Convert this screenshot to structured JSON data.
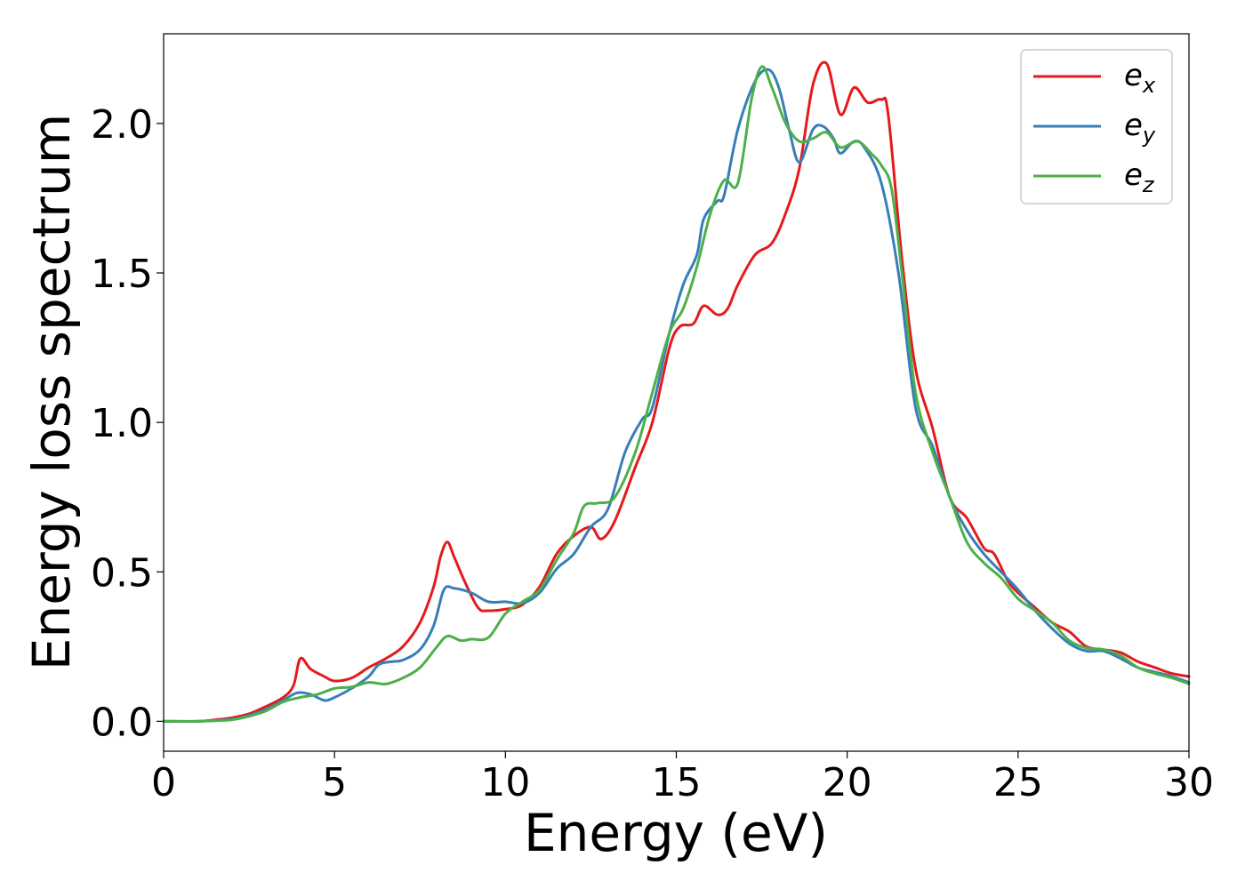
{
  "chart_data": {
    "type": "line",
    "xlabel": "Energy (eV)",
    "ylabel": "Energy loss spectrum",
    "xlim": [
      0,
      30
    ],
    "ylim": [
      -0.1,
      2.3
    ],
    "xticks": [
      0,
      5,
      10,
      15,
      20,
      25,
      30
    ],
    "xtick_labels": [
      "0",
      "5",
      "10",
      "15",
      "20",
      "25",
      "30"
    ],
    "yticks": [
      0.0,
      0.5,
      1.0,
      1.5,
      2.0
    ],
    "ytick_labels": [
      "0.0",
      "0.5",
      "1.0",
      "1.5",
      "2.0"
    ],
    "grid": false,
    "legend_position": "top-right",
    "series": [
      {
        "name": "e",
        "subscript": "x",
        "color": "#e41a1c",
        "points": [
          [
            0,
            0
          ],
          [
            1,
            0
          ],
          [
            1.5,
            0.005
          ],
          [
            2,
            0.012
          ],
          [
            2.5,
            0.025
          ],
          [
            3,
            0.05
          ],
          [
            3.5,
            0.08
          ],
          [
            3.8,
            0.12
          ],
          [
            4,
            0.21
          ],
          [
            4.3,
            0.175
          ],
          [
            4.7,
            0.15
          ],
          [
            5,
            0.135
          ],
          [
            5.5,
            0.145
          ],
          [
            6,
            0.18
          ],
          [
            6.5,
            0.21
          ],
          [
            7,
            0.25
          ],
          [
            7.5,
            0.33
          ],
          [
            7.9,
            0.45
          ],
          [
            8.1,
            0.55
          ],
          [
            8.3,
            0.6
          ],
          [
            8.5,
            0.55
          ],
          [
            8.8,
            0.47
          ],
          [
            9.2,
            0.38
          ],
          [
            9.5,
            0.37
          ],
          [
            10,
            0.375
          ],
          [
            10.5,
            0.39
          ],
          [
            11,
            0.45
          ],
          [
            11.5,
            0.56
          ],
          [
            12,
            0.62
          ],
          [
            12.5,
            0.65
          ],
          [
            12.8,
            0.61
          ],
          [
            13.2,
            0.67
          ],
          [
            13.8,
            0.85
          ],
          [
            14.3,
            1.0
          ],
          [
            14.8,
            1.25
          ],
          [
            15.1,
            1.32
          ],
          [
            15.5,
            1.33
          ],
          [
            15.8,
            1.39
          ],
          [
            16.2,
            1.36
          ],
          [
            16.5,
            1.38
          ],
          [
            16.8,
            1.46
          ],
          [
            17.3,
            1.56
          ],
          [
            17.8,
            1.6
          ],
          [
            18.2,
            1.7
          ],
          [
            18.6,
            1.85
          ],
          [
            19,
            2.13
          ],
          [
            19.4,
            2.2
          ],
          [
            19.8,
            2.03
          ],
          [
            20.2,
            2.12
          ],
          [
            20.6,
            2.07
          ],
          [
            21,
            2.08
          ],
          [
            21.2,
            2.03
          ],
          [
            21.6,
            1.55
          ],
          [
            22,
            1.18
          ],
          [
            22.5,
            0.98
          ],
          [
            23,
            0.75
          ],
          [
            23.5,
            0.68
          ],
          [
            24,
            0.58
          ],
          [
            24.3,
            0.56
          ],
          [
            24.7,
            0.47
          ],
          [
            25,
            0.43
          ],
          [
            25.5,
            0.38
          ],
          [
            26,
            0.33
          ],
          [
            26.5,
            0.3
          ],
          [
            27,
            0.25
          ],
          [
            27.5,
            0.24
          ],
          [
            28,
            0.23
          ],
          [
            28.5,
            0.2
          ],
          [
            29,
            0.18
          ],
          [
            29.5,
            0.16
          ],
          [
            30,
            0.15
          ]
        ]
      },
      {
        "name": "e",
        "subscript": "y",
        "color": "#377eb8",
        "points": [
          [
            0,
            0
          ],
          [
            1,
            0
          ],
          [
            1.5,
            0.003
          ],
          [
            2,
            0.007
          ],
          [
            2.5,
            0.02
          ],
          [
            3,
            0.04
          ],
          [
            3.5,
            0.07
          ],
          [
            3.9,
            0.095
          ],
          [
            4.3,
            0.09
          ],
          [
            4.7,
            0.07
          ],
          [
            5,
            0.08
          ],
          [
            5.5,
            0.11
          ],
          [
            6,
            0.15
          ],
          [
            6.3,
            0.19
          ],
          [
            6.7,
            0.2
          ],
          [
            7,
            0.205
          ],
          [
            7.5,
            0.24
          ],
          [
            7.9,
            0.32
          ],
          [
            8.2,
            0.44
          ],
          [
            8.5,
            0.445
          ],
          [
            9,
            0.43
          ],
          [
            9.5,
            0.4
          ],
          [
            10,
            0.4
          ],
          [
            10.5,
            0.395
          ],
          [
            11,
            0.43
          ],
          [
            11.5,
            0.51
          ],
          [
            12,
            0.56
          ],
          [
            12.5,
            0.65
          ],
          [
            13,
            0.71
          ],
          [
            13.5,
            0.9
          ],
          [
            14,
            1.01
          ],
          [
            14.3,
            1.05
          ],
          [
            14.8,
            1.3
          ],
          [
            15.2,
            1.46
          ],
          [
            15.6,
            1.56
          ],
          [
            15.8,
            1.68
          ],
          [
            16.2,
            1.74
          ],
          [
            16.4,
            1.76
          ],
          [
            16.8,
            1.98
          ],
          [
            17.3,
            2.14
          ],
          [
            17.7,
            2.18
          ],
          [
            18,
            2.12
          ],
          [
            18.3,
            1.98
          ],
          [
            18.6,
            1.87
          ],
          [
            19,
            1.98
          ],
          [
            19.3,
            1.99
          ],
          [
            19.6,
            1.95
          ],
          [
            19.8,
            1.9
          ],
          [
            20.2,
            1.94
          ],
          [
            20.5,
            1.92
          ],
          [
            21,
            1.8
          ],
          [
            21.5,
            1.5
          ],
          [
            22,
            1.05
          ],
          [
            22.5,
            0.92
          ],
          [
            23,
            0.75
          ],
          [
            23.5,
            0.64
          ],
          [
            24,
            0.56
          ],
          [
            24.5,
            0.5
          ],
          [
            25,
            0.44
          ],
          [
            25.5,
            0.37
          ],
          [
            26,
            0.31
          ],
          [
            26.5,
            0.26
          ],
          [
            27,
            0.235
          ],
          [
            27.5,
            0.235
          ],
          [
            28,
            0.21
          ],
          [
            28.5,
            0.18
          ],
          [
            29,
            0.165
          ],
          [
            29.5,
            0.15
          ],
          [
            30,
            0.13
          ]
        ]
      },
      {
        "name": "e",
        "subscript": "z",
        "color": "#4daf4a",
        "points": [
          [
            0,
            0
          ],
          [
            1,
            0
          ],
          [
            1.5,
            0.002
          ],
          [
            2,
            0.005
          ],
          [
            2.5,
            0.017
          ],
          [
            3,
            0.035
          ],
          [
            3.5,
            0.065
          ],
          [
            4,
            0.08
          ],
          [
            4.5,
            0.09
          ],
          [
            5,
            0.11
          ],
          [
            5.5,
            0.115
          ],
          [
            6,
            0.13
          ],
          [
            6.5,
            0.125
          ],
          [
            7,
            0.145
          ],
          [
            7.5,
            0.18
          ],
          [
            8,
            0.25
          ],
          [
            8.3,
            0.285
          ],
          [
            8.7,
            0.27
          ],
          [
            9,
            0.275
          ],
          [
            9.5,
            0.28
          ],
          [
            10,
            0.36
          ],
          [
            10.5,
            0.4
          ],
          [
            11,
            0.44
          ],
          [
            11.5,
            0.54
          ],
          [
            12,
            0.63
          ],
          [
            12.3,
            0.72
          ],
          [
            12.7,
            0.73
          ],
          [
            13.2,
            0.75
          ],
          [
            13.8,
            0.9
          ],
          [
            14.3,
            1.1
          ],
          [
            14.8,
            1.3
          ],
          [
            15.2,
            1.38
          ],
          [
            15.6,
            1.52
          ],
          [
            16,
            1.7
          ],
          [
            16.4,
            1.81
          ],
          [
            16.8,
            1.8
          ],
          [
            17.2,
            2.08
          ],
          [
            17.5,
            2.19
          ],
          [
            17.8,
            2.12
          ],
          [
            18.2,
            2.0
          ],
          [
            18.6,
            1.94
          ],
          [
            19,
            1.95
          ],
          [
            19.4,
            1.97
          ],
          [
            19.8,
            1.92
          ],
          [
            20.3,
            1.94
          ],
          [
            20.7,
            1.9
          ],
          [
            21,
            1.86
          ],
          [
            21.3,
            1.78
          ],
          [
            21.6,
            1.5
          ],
          [
            22,
            1.1
          ],
          [
            22.5,
            0.9
          ],
          [
            23,
            0.75
          ],
          [
            23.5,
            0.6
          ],
          [
            24,
            0.53
          ],
          [
            24.5,
            0.48
          ],
          [
            25,
            0.41
          ],
          [
            25.5,
            0.37
          ],
          [
            26,
            0.33
          ],
          [
            26.5,
            0.27
          ],
          [
            27,
            0.245
          ],
          [
            27.5,
            0.24
          ],
          [
            28,
            0.22
          ],
          [
            28.5,
            0.18
          ],
          [
            29,
            0.16
          ],
          [
            29.5,
            0.145
          ],
          [
            30,
            0.125
          ]
        ]
      }
    ]
  }
}
